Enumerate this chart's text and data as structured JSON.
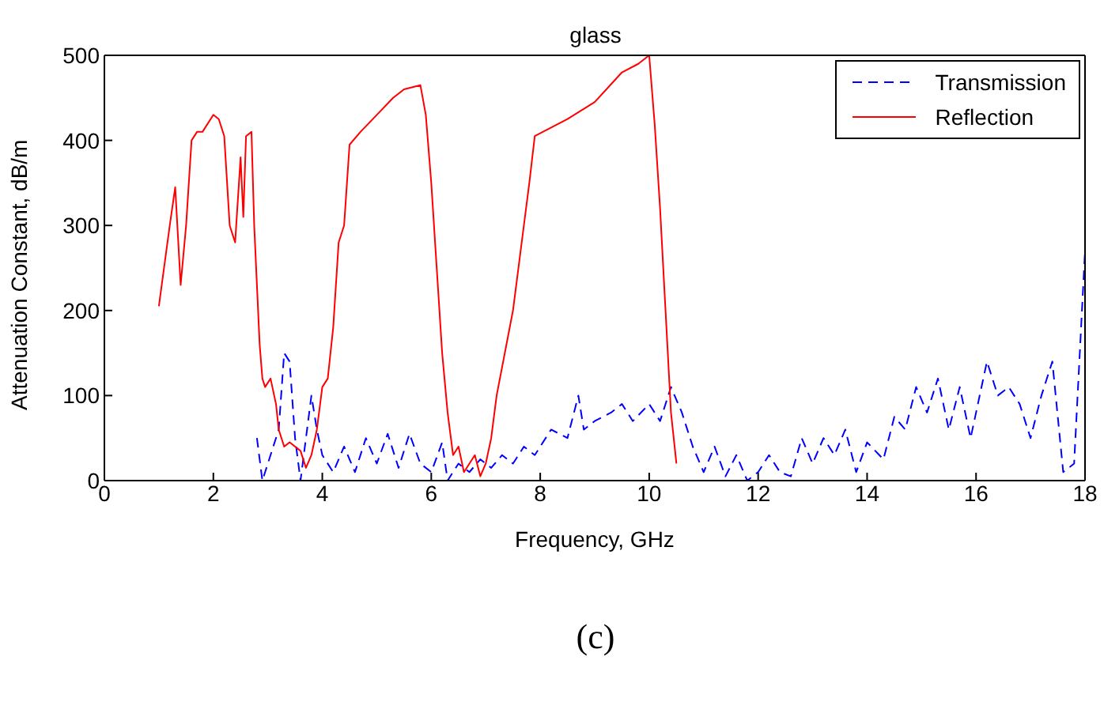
{
  "chart_data": {
    "type": "line",
    "title": "glass",
    "xlabel": "Frequency, GHz",
    "ylabel": "Attenuation Constant, dB/m",
    "annotations": [
      "(c)"
    ],
    "xlim": [
      0,
      18
    ],
    "xticks": [
      0,
      2,
      4,
      6,
      8,
      10,
      12,
      14,
      16,
      18
    ],
    "ylim": [
      0,
      500
    ],
    "yticks": [
      0,
      100,
      200,
      300,
      400,
      500
    ],
    "legend": "top right",
    "series": [
      {
        "name": "Transmission",
        "color": "#0000ff",
        "line_style": "dashed",
        "x": [
          2.8,
          2.9,
          3.0,
          3.1,
          3.2,
          3.3,
          3.4,
          3.5,
          3.6,
          3.7,
          3.8,
          3.9,
          4.0,
          4.2,
          4.4,
          4.6,
          4.8,
          5.0,
          5.2,
          5.4,
          5.6,
          5.8,
          6.0,
          6.2,
          6.3,
          6.5,
          6.7,
          6.9,
          7.1,
          7.3,
          7.5,
          7.7,
          7.9,
          8.2,
          8.5,
          8.7,
          8.8,
          9.0,
          9.3,
          9.5,
          9.7,
          10.0,
          10.2,
          10.4,
          10.6,
          10.8,
          11.0,
          11.2,
          11.4,
          11.6,
          11.8,
          12.0,
          12.2,
          12.4,
          12.6,
          12.8,
          13.0,
          13.2,
          13.4,
          13.6,
          13.8,
          14.0,
          14.3,
          14.5,
          14.7,
          14.9,
          15.1,
          15.3,
          15.5,
          15.7,
          15.9,
          16.2,
          16.4,
          16.6,
          16.8,
          17.0,
          17.2,
          17.4,
          17.6,
          17.8,
          18.0
        ],
        "values": [
          50,
          0,
          20,
          40,
          60,
          150,
          140,
          50,
          0,
          50,
          100,
          60,
          30,
          10,
          40,
          10,
          50,
          20,
          55,
          15,
          55,
          20,
          10,
          45,
          0,
          20,
          10,
          25,
          15,
          30,
          20,
          40,
          30,
          60,
          50,
          100,
          60,
          70,
          80,
          90,
          70,
          90,
          70,
          110,
          80,
          40,
          10,
          40,
          5,
          30,
          0,
          10,
          30,
          10,
          5,
          50,
          20,
          50,
          30,
          60,
          10,
          45,
          25,
          75,
          60,
          110,
          80,
          120,
          60,
          110,
          50,
          140,
          100,
          110,
          90,
          50,
          100,
          140,
          10,
          20,
          270
        ]
      },
      {
        "name": "Reflection",
        "color": "#ff0000",
        "line_style": "solid",
        "x": [
          1.0,
          1.2,
          1.3,
          1.4,
          1.5,
          1.6,
          1.7,
          1.8,
          2.0,
          2.1,
          2.2,
          2.3,
          2.4,
          2.5,
          2.55,
          2.6,
          2.7,
          2.75,
          2.85,
          2.9,
          2.95,
          3.05,
          3.15,
          3.2,
          3.3,
          3.4,
          3.6,
          3.7,
          3.8,
          3.9,
          4.0,
          4.1,
          4.2,
          4.3,
          4.4,
          4.5,
          4.7,
          5.0,
          5.3,
          5.5,
          5.8,
          5.9,
          6.0,
          6.1,
          6.2,
          6.3,
          6.4,
          6.5,
          6.6,
          6.8,
          6.9,
          7.0,
          7.1,
          7.2,
          7.5,
          7.7,
          7.8,
          7.9,
          8.2,
          8.5,
          9.0,
          9.5,
          9.8,
          10.0,
          10.1,
          10.2,
          10.3,
          10.4,
          10.5
        ],
        "values": [
          205,
          300,
          345,
          230,
          300,
          400,
          410,
          410,
          430,
          425,
          405,
          300,
          280,
          380,
          310,
          405,
          410,
          300,
          160,
          120,
          110,
          120,
          90,
          60,
          40,
          45,
          35,
          15,
          30,
          60,
          110,
          120,
          180,
          280,
          300,
          395,
          410,
          430,
          450,
          460,
          465,
          430,
          350,
          250,
          150,
          80,
          30,
          40,
          10,
          30,
          5,
          20,
          50,
          100,
          200,
          300,
          350,
          405,
          415,
          425,
          445,
          480,
          490,
          500,
          420,
          320,
          200,
          80,
          20
        ]
      }
    ]
  }
}
